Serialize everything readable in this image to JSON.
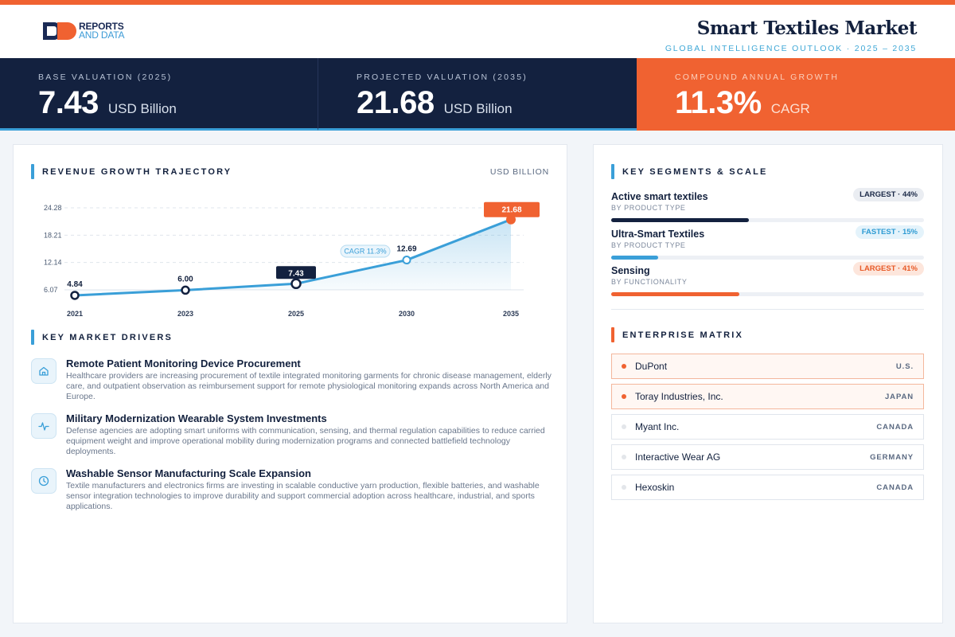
{
  "brand": {
    "line1": "REPORTS",
    "line2": "AND DATA"
  },
  "header": {
    "title": "Smart Textiles Market",
    "subtitle": "GLOBAL INTELLIGENCE OUTLOOK  ·  2025 – 2035"
  },
  "kpis": [
    {
      "label": "BASE VALUATION (2025)",
      "value": "7.43",
      "unit": "USD Billion"
    },
    {
      "label": "PROJECTED VALUATION (2035)",
      "value": "21.68",
      "unit": "USD Billion"
    },
    {
      "label": "COMPOUND ANNUAL GROWTH",
      "value": "11.3%",
      "unit": "CAGR"
    }
  ],
  "chart_section": {
    "title": "REVENUE GROWTH TRAJECTORY",
    "unit": "USD BILLION"
  },
  "chart_data": {
    "type": "area",
    "title": "REVENUE GROWTH TRAJECTORY",
    "ylabel": "USD BILLION",
    "x": [
      "2021",
      "2023",
      "2025",
      "2030",
      "2035"
    ],
    "values": [
      4.84,
      6.0,
      7.43,
      12.69,
      21.68
    ],
    "data_labels": [
      "4.84",
      "6.00",
      "7.43",
      "12.69",
      "21.68"
    ],
    "yticks": [
      "24.28",
      "18.21",
      "12.14",
      "6.07"
    ],
    "ytick_values": [
      24.28,
      18.21,
      12.14,
      6.07
    ],
    "ylim": [
      6.07,
      24.28
    ],
    "annotation": "CAGR 11.3%",
    "grid": true,
    "colors": {
      "line": "#3a9fd8",
      "highlight_base": "#13213f",
      "highlight_end": "#f06231"
    }
  },
  "drivers_section": {
    "title": "KEY MARKET DRIVERS"
  },
  "drivers": [
    {
      "icon": "home-icon",
      "title": "Remote Patient Monitoring Device Procurement",
      "body": "Healthcare providers are increasing procurement of textile integrated monitoring garments for chronic disease management, elderly care, and outpatient observation as reimbursement support for remote physiological monitoring expands across North America and Europe."
    },
    {
      "icon": "pulse-icon",
      "title": "Military Modernization Wearable System Investments",
      "body": "Defense agencies are adopting smart uniforms with communication, sensing, and thermal regulation capabilities to reduce carried equipment weight and improve operational mobility during modernization programs and connected battlefield technology deployments."
    },
    {
      "icon": "clock-icon",
      "title": "Washable Sensor Manufacturing Scale Expansion",
      "body": "Textile manufacturers and electronics firms are investing in scalable conductive yarn production, flexible batteries, and washable sensor integration technologies to improve durability and support commercial adoption across healthcare, industrial, and sports applications."
    }
  ],
  "segments_section": {
    "title": "KEY SEGMENTS & SCALE"
  },
  "segments": [
    {
      "name": "Active smart textiles",
      "sub": "BY PRODUCT TYPE",
      "badge": "LARGEST · 44%",
      "share": 0.44,
      "color": "#13213f"
    },
    {
      "name": "Ultra-Smart Textiles",
      "sub": "BY PRODUCT TYPE",
      "badge": "FASTEST · 15%",
      "share": 0.15,
      "color": "#3a9fd8"
    },
    {
      "name": "Sensing",
      "sub": "BY FUNCTIONALITY",
      "badge": "LARGEST · 41%",
      "share": 0.41,
      "color": "#f06231"
    }
  ],
  "enterprise_section": {
    "title": "ENTERPRISE MATRIX"
  },
  "enterprises": [
    {
      "name": "DuPont",
      "country": "U.S.",
      "highlight": true
    },
    {
      "name": "Toray Industries, Inc.",
      "country": "JAPAN",
      "highlight": true
    },
    {
      "name": "Myant Inc.",
      "country": "CANADA",
      "highlight": false
    },
    {
      "name": "Interactive Wear AG",
      "country": "GERMANY",
      "highlight": false
    },
    {
      "name": "Hexoskin",
      "country": "CANADA",
      "highlight": false
    }
  ]
}
